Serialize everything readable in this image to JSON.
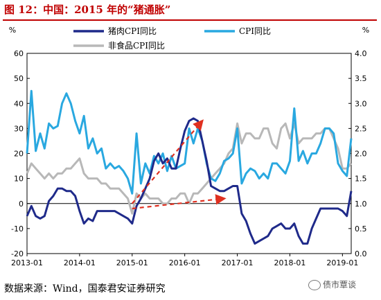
{
  "title": "图 12：中国：2015 年的“猪通胀”",
  "source": "数据来源：Wind，国泰君安证券研究",
  "watermark": "债市覃谈",
  "chart_data": {
    "type": "line",
    "left_axis_unit": "%",
    "right_axis_unit": "%",
    "left_axis": {
      "min": -20,
      "max": 60,
      "ticks": [
        "-20",
        "-10",
        "0",
        "10",
        "20",
        "30",
        "40",
        "50",
        "60"
      ]
    },
    "right_axis": {
      "min": 0.0,
      "max": 4.0,
      "ticks": [
        "0.0",
        "0.5",
        "1.0",
        "1.5",
        "2.0",
        "2.5",
        "3.0",
        "3.5",
        "4.0"
      ]
    },
    "x_ticks": [
      "2013-01",
      "2014-01",
      "2015-01",
      "2016-01",
      "2017-01",
      "2018-01",
      "2019-01"
    ],
    "x_range": [
      "2013-01",
      "2019-03"
    ],
    "grid": false,
    "legend_placement": "top",
    "series": [
      {
        "name": "猪肉CPI同比",
        "axis": "left",
        "color": "#1f2a8a",
        "x": [
          "2013-01",
          "2013-02",
          "2013-03",
          "2013-04",
          "2013-05",
          "2013-06",
          "2013-07",
          "2013-08",
          "2013-09",
          "2013-10",
          "2013-11",
          "2013-12",
          "2014-01",
          "2014-02",
          "2014-03",
          "2014-04",
          "2014-05",
          "2014-06",
          "2014-07",
          "2014-08",
          "2014-09",
          "2014-10",
          "2014-11",
          "2014-12",
          "2015-01",
          "2015-02",
          "2015-03",
          "2015-04",
          "2015-05",
          "2015-06",
          "2015-07",
          "2015-08",
          "2015-09",
          "2015-10",
          "2015-11",
          "2015-12",
          "2016-01",
          "2016-02",
          "2016-03",
          "2016-04",
          "2016-05",
          "2016-06",
          "2016-07",
          "2016-08",
          "2016-09",
          "2016-10",
          "2016-11",
          "2016-12",
          "2017-01",
          "2017-02",
          "2017-03",
          "2017-04",
          "2017-05",
          "2017-06",
          "2017-07",
          "2017-08",
          "2017-09",
          "2017-10",
          "2017-11",
          "2017-12",
          "2018-01",
          "2018-02",
          "2018-03",
          "2018-04",
          "2018-05",
          "2018-06",
          "2018-07",
          "2018-08",
          "2018-09",
          "2018-10",
          "2018-11",
          "2018-12",
          "2019-01",
          "2019-02",
          "2019-03"
        ],
        "values": [
          -5,
          -1,
          -5,
          -6,
          -5,
          1,
          3,
          6,
          6,
          5,
          5,
          3,
          -3,
          -8,
          -6,
          -7,
          -3,
          -3,
          -3,
          -3,
          -3,
          -4,
          -5,
          -6,
          -8,
          -1,
          2,
          6,
          10,
          17,
          20,
          16,
          18,
          14,
          14,
          22,
          29,
          33,
          34,
          33,
          25,
          17,
          7,
          6,
          5,
          5,
          6,
          7,
          7,
          -4,
          -7,
          -12,
          -16,
          -15,
          -14,
          -13,
          -10,
          -9,
          -8,
          -10,
          -10,
          -8,
          -13,
          -16,
          -16,
          -10,
          -6,
          -2,
          -2,
          -2,
          -2,
          -2,
          -3,
          -5,
          5
        ]
      },
      {
        "name": "CPI同比",
        "axis": "left",
        "color": "#29a8e0",
        "x": [
          "2013-01",
          "2013-02",
          "2013-03",
          "2013-04",
          "2013-05",
          "2013-06",
          "2013-07",
          "2013-08",
          "2013-09",
          "2013-10",
          "2013-11",
          "2013-12",
          "2014-01",
          "2014-02",
          "2014-03",
          "2014-04",
          "2014-05",
          "2014-06",
          "2014-07",
          "2014-08",
          "2014-09",
          "2014-10",
          "2014-11",
          "2014-12",
          "2015-01",
          "2015-02",
          "2015-03",
          "2015-04",
          "2015-05",
          "2015-06",
          "2015-07",
          "2015-08",
          "2015-09",
          "2015-10",
          "2015-11",
          "2015-12",
          "2016-01",
          "2016-02",
          "2016-03",
          "2016-04",
          "2016-05",
          "2016-06",
          "2016-07",
          "2016-08",
          "2016-09",
          "2016-10",
          "2016-11",
          "2016-12",
          "2017-01",
          "2017-02",
          "2017-03",
          "2017-04",
          "2017-05",
          "2017-06",
          "2017-07",
          "2017-08",
          "2017-09",
          "2017-10",
          "2017-11",
          "2017-12",
          "2018-01",
          "2018-02",
          "2018-03",
          "2018-04",
          "2018-05",
          "2018-06",
          "2018-07",
          "2018-08",
          "2018-09",
          "2018-10",
          "2018-11",
          "2018-12",
          "2019-01",
          "2019-02",
          "2019-03"
        ],
        "values": [
          20,
          45,
          21,
          28,
          22,
          32,
          30,
          31,
          40,
          44,
          40,
          33,
          28,
          35,
          22,
          26,
          20,
          22,
          14,
          16,
          14,
          15,
          13,
          10,
          4,
          28,
          8,
          16,
          12,
          19,
          16,
          20,
          13,
          19,
          14,
          15,
          16,
          30,
          24,
          30,
          25,
          16,
          10,
          9,
          12,
          17,
          18,
          20,
          30,
          8,
          12,
          14,
          13,
          10,
          12,
          10,
          16,
          16,
          14,
          12,
          17,
          38,
          17,
          21,
          16,
          20,
          20,
          24,
          30,
          30,
          28,
          16,
          13,
          11,
          26
        ]
      },
      {
        "name": "非食品CPI同比",
        "axis": "right",
        "color": "#b8b8b8",
        "x": [
          "2013-01",
          "2013-02",
          "2013-03",
          "2013-04",
          "2013-05",
          "2013-06",
          "2013-07",
          "2013-08",
          "2013-09",
          "2013-10",
          "2013-11",
          "2013-12",
          "2014-01",
          "2014-02",
          "2014-03",
          "2014-04",
          "2014-05",
          "2014-06",
          "2014-07",
          "2014-08",
          "2014-09",
          "2014-10",
          "2014-11",
          "2014-12",
          "2015-01",
          "2015-02",
          "2015-03",
          "2015-04",
          "2015-05",
          "2015-06",
          "2015-07",
          "2015-08",
          "2015-09",
          "2015-10",
          "2015-11",
          "2015-12",
          "2016-01",
          "2016-02",
          "2016-03",
          "2016-04",
          "2016-05",
          "2016-06",
          "2016-07",
          "2016-08",
          "2016-09",
          "2016-10",
          "2016-11",
          "2016-12",
          "2017-01",
          "2017-02",
          "2017-03",
          "2017-04",
          "2017-05",
          "2017-06",
          "2017-07",
          "2017-08",
          "2017-09",
          "2017-10",
          "2017-11",
          "2017-12",
          "2018-01",
          "2018-02",
          "2018-03",
          "2018-04",
          "2018-05",
          "2018-06",
          "2018-07",
          "2018-08",
          "2018-09",
          "2018-10",
          "2018-11",
          "2018-12",
          "2019-01",
          "2019-02",
          "2019-03"
        ],
        "values": [
          1.6,
          1.8,
          1.7,
          1.6,
          1.5,
          1.6,
          1.5,
          1.6,
          1.6,
          1.7,
          1.7,
          1.8,
          1.9,
          1.6,
          1.5,
          1.5,
          1.5,
          1.4,
          1.4,
          1.3,
          1.3,
          1.3,
          1.2,
          1.1,
          0.8,
          1.2,
          1.1,
          1.2,
          1.1,
          1.1,
          1.1,
          1.0,
          1.0,
          1.1,
          1.1,
          1.2,
          1.2,
          1.0,
          1.2,
          1.2,
          1.3,
          1.4,
          1.5,
          1.6,
          1.7,
          1.8,
          2.0,
          2.1,
          2.6,
          2.2,
          2.4,
          2.4,
          2.3,
          2.3,
          2.5,
          2.5,
          2.2,
          2.1,
          2.5,
          2.6,
          2.3,
          2.6,
          2.2,
          2.3,
          2.3,
          2.3,
          2.4,
          2.4,
          2.5,
          2.5,
          2.3,
          2.1,
          1.7,
          1.7,
          1.8
        ]
      }
    ],
    "annotations": [
      {
        "kind": "dashed-arrow",
        "color": "#e03020",
        "from": [
          "2015-01",
          0
        ],
        "to": [
          "2016-05",
          33
        ]
      },
      {
        "kind": "dashed-arrow",
        "color": "#e03020",
        "from": [
          "2015-01",
          0.9
        ],
        "to": [
          "2016-10",
          1.1
        ],
        "axis": "right"
      }
    ]
  }
}
